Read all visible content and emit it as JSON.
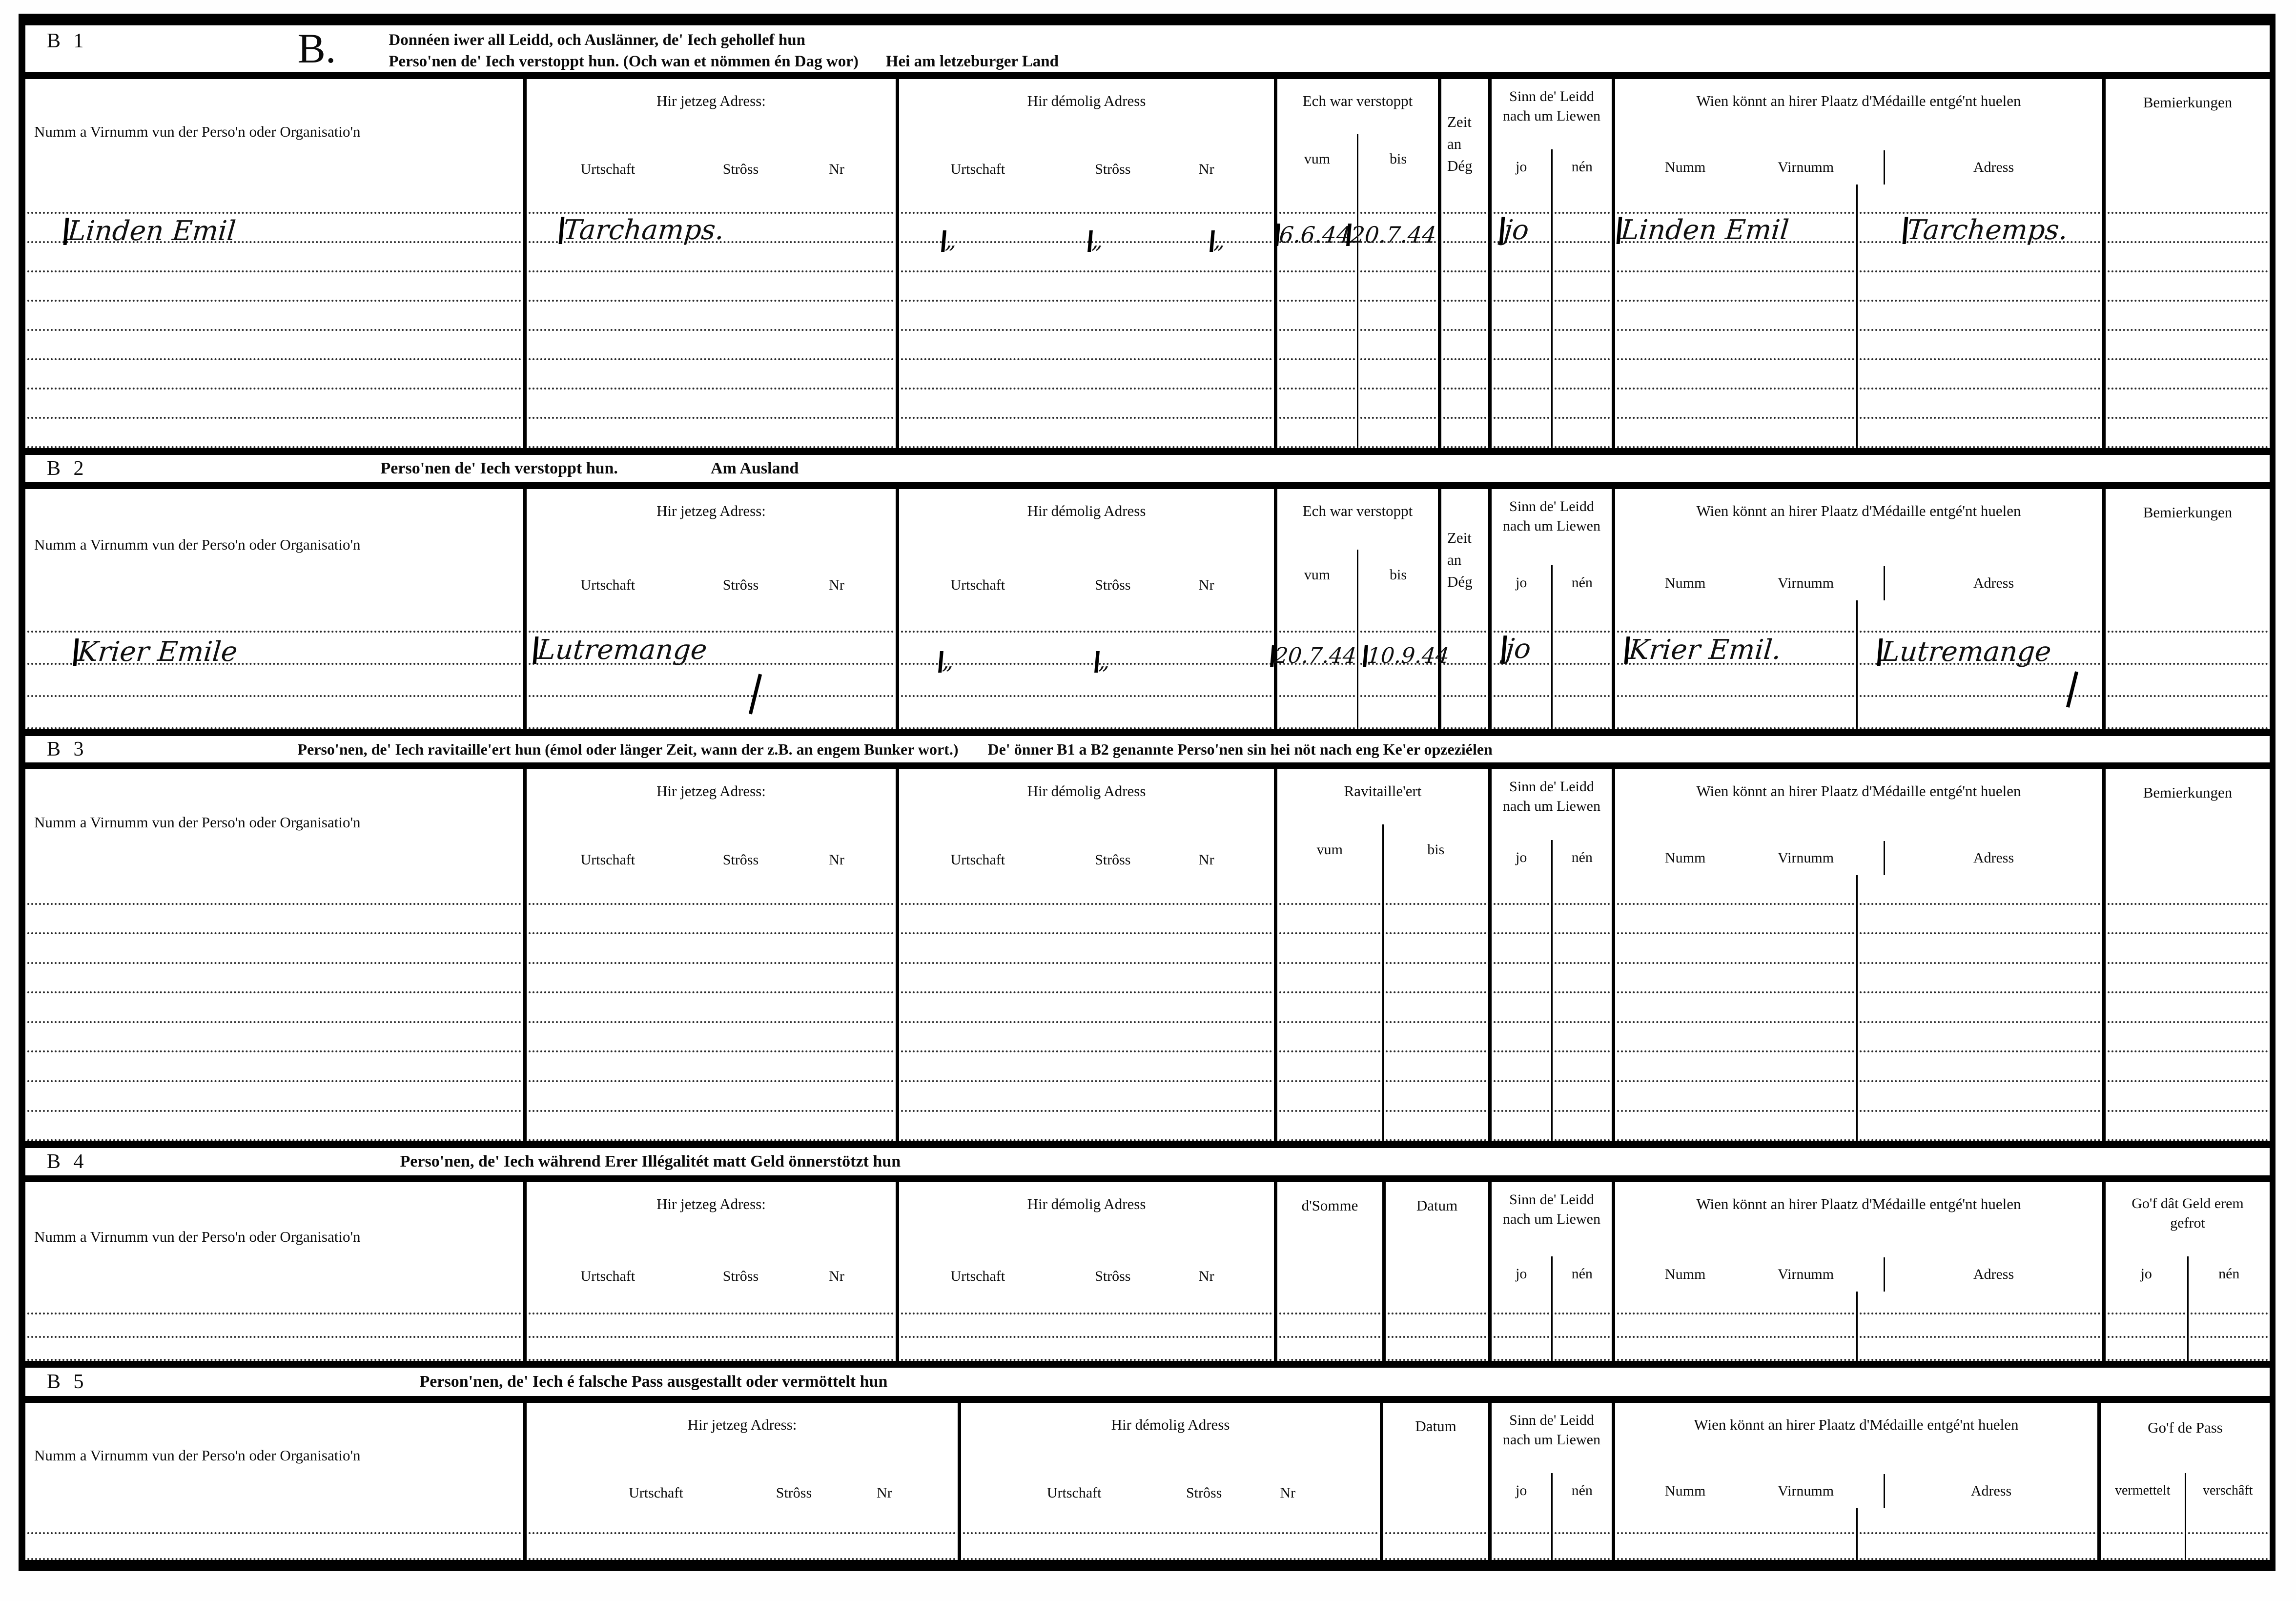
{
  "labels": {
    "name_org": "Numm a Virnumm vun der Perso'n oder Organisatio'n",
    "jetzeg": "Hir jetzeg Adress:",
    "demolig": "Hir démolig Adress",
    "urtschaft": "Urtschaft",
    "stross": "Strôss",
    "nr": "Nr",
    "verstoppt": "Ech war verstoppt",
    "vum": "vum",
    "bis": "bis",
    "zeit1": "Zeit",
    "zeit2": "an",
    "zeit3": "Dég",
    "sinn": "Sinn de' Leidd nach um Liewen",
    "jo": "jo",
    "nen": "nén",
    "medaille": "Wien könnt an hirer Plaatz d'Médaille entgé'nt huelen",
    "numm": "Numm",
    "virnumm": "Virnumm",
    "adress": "Adress",
    "bemierkungen": "Bemierkungen",
    "ravitailleert": "Ravitaille'ert",
    "d_somme": "d'Somme",
    "datum": "Datum",
    "gof_geld": "Go'f dât Geld erem gefrot",
    "gof_pass": "Go'f de Pass",
    "vermettelt": "vermettelt",
    "verschaft": "verschâft"
  },
  "sections": {
    "b1": {
      "id": "B 1",
      "letter": "B.",
      "title1": "Donnéen iwer all Leidd, och Auslänner, de' Iech gehollef hun",
      "title2": "Perso'nen de' Iech verstoppt hun. (Och wan et nömmen én Dag wor)",
      "title2b": "Hei am letzeburger Land"
    },
    "b2": {
      "id": "B 2",
      "title": "Perso'nen de' Iech verstoppt hun.",
      "title_b": "Am Ausland"
    },
    "b3": {
      "id": "B 3",
      "title": "Perso'nen, de' Iech ravitaille'ert hun (émol oder länger Zeit, wann der z.B. an engem Bunker wort.)",
      "title_b": "De' önner B1 a B2 genannte Perso'nen sin hei nöt nach eng Ke'er opzeziélen"
    },
    "b4": {
      "id": "B 4",
      "title": "Perso'nen, de' Iech während Erer Illégalitét matt Geld önnerstötzt hun"
    },
    "b5": {
      "id": "B 5",
      "title": "Person'nen, de' Iech é falsche Pass ausgestallt oder vermöttelt hun"
    }
  },
  "entries": {
    "b1": {
      "name": "Linden Emil",
      "jetzeg_urtschaft": "Tarchamps.",
      "ditto1": "„",
      "ditto2": "„",
      "ditto3": "„",
      "vum": "6.6.44",
      "bis": "20.7.44",
      "liewen": "jo",
      "med_name": "Linden Emil",
      "med_adress": "Tarchemps."
    },
    "b2": {
      "name": "Krier Emile",
      "jetzeg_urtschaft": "Lutremange",
      "ditto1": "„",
      "ditto2": "„",
      "vum": "20.7.44",
      "bis": "10.9.44",
      "liewen": "jo",
      "med_name": "Krier Emil.",
      "med_adress": "Lutremange"
    }
  }
}
